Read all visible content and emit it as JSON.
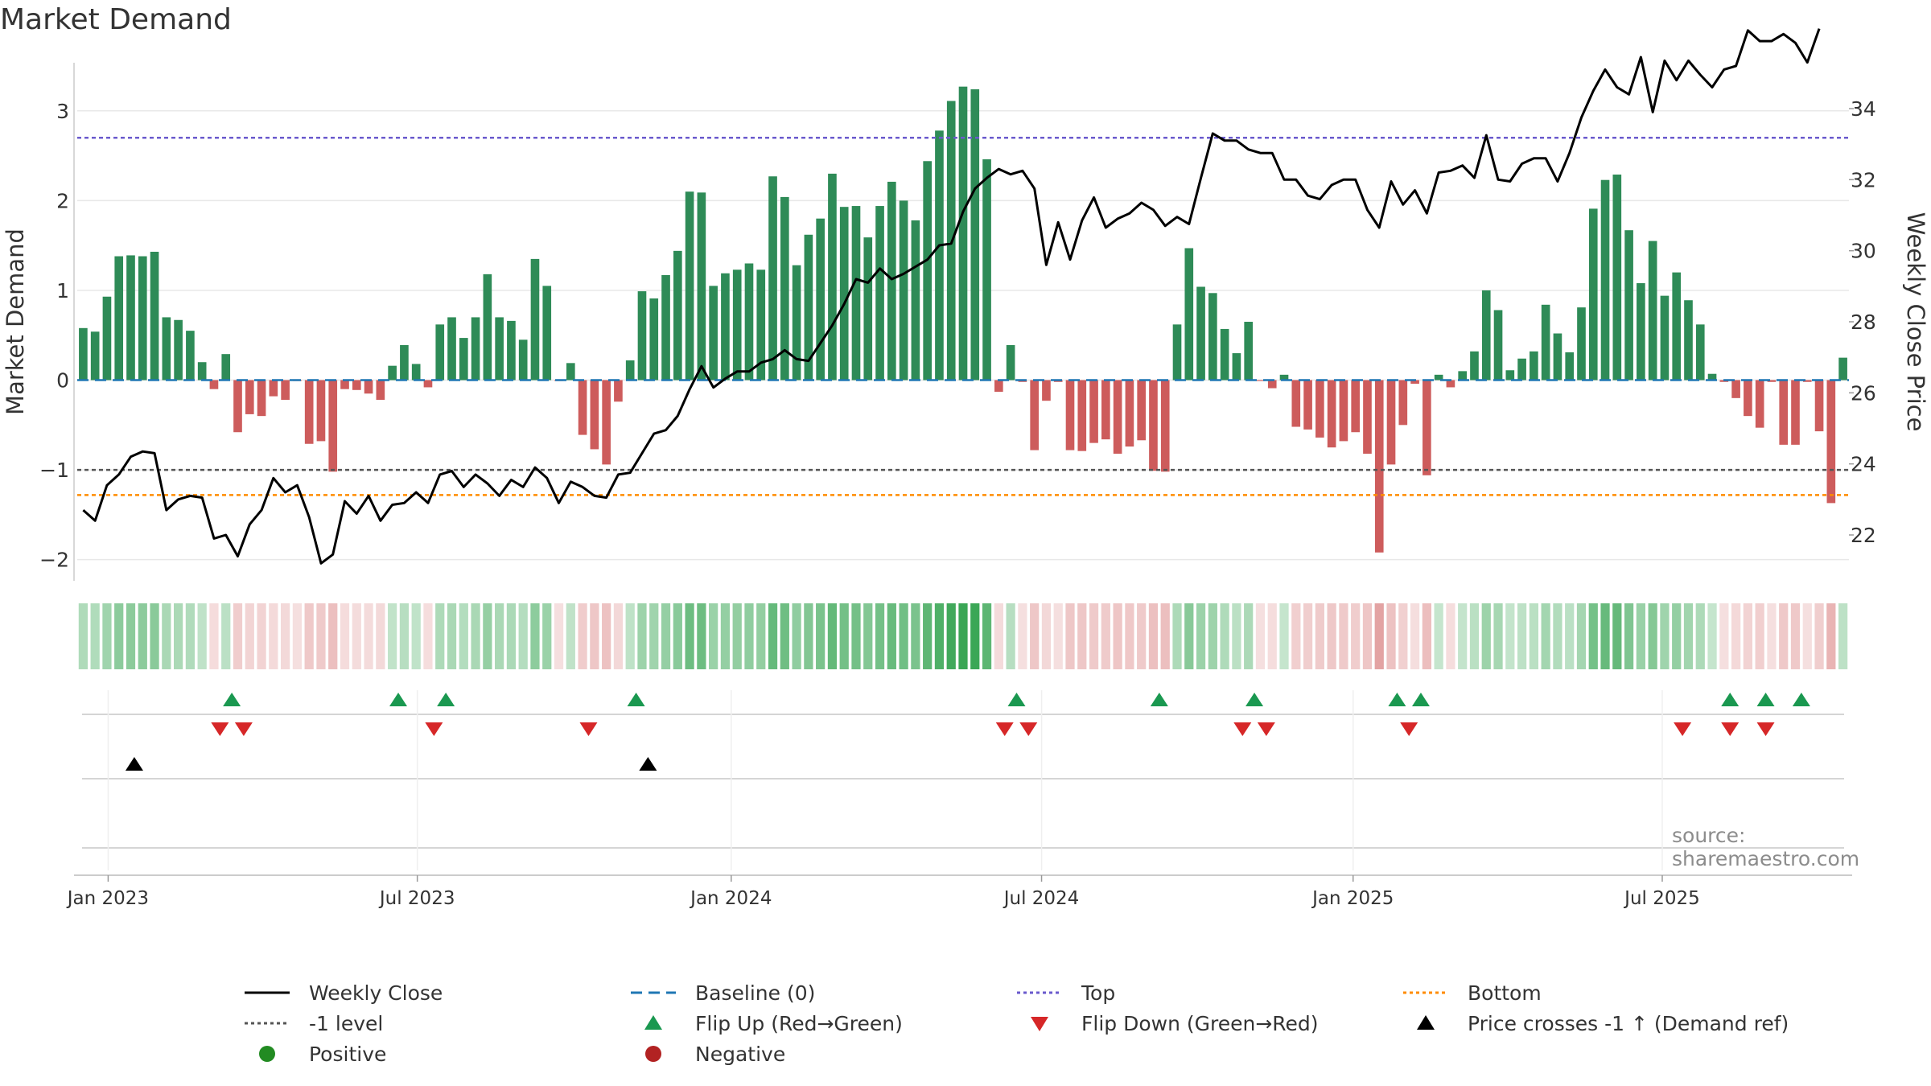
{
  "title": "Market Demand",
  "source": "source: sharemaestro.com",
  "colors": {
    "positive_bar": "#2e8b57",
    "negative_bar": "#cd5c5c",
    "close_line": "#000000",
    "baseline": "#1f77b4",
    "top": "#6a5acd",
    "bottom": "#ff8c00",
    "minus1": "#555555",
    "flip_up": "#1a9850",
    "flip_down": "#d62728",
    "cross": "#000000",
    "grid": "#e8e8e8"
  },
  "chart_data": {
    "type": "bar",
    "title": "Market Demand",
    "ylabel": "Market Demand",
    "y2label": "Weekly Close Price",
    "ylim": [
      -2.2,
      3.5
    ],
    "y2lim": [
      20.8,
      35.2
    ],
    "yticks": [
      -2,
      -1,
      0,
      1,
      2,
      3
    ],
    "y2ticks": [
      22,
      24,
      26,
      28,
      30,
      32,
      34
    ],
    "xticks": [
      {
        "label": "Jan 2023",
        "week": 2.1
      },
      {
        "label": "Jul 2023",
        "week": 28.1
      },
      {
        "label": "Jan 2024",
        "week": 54.5
      },
      {
        "label": "Jul 2024",
        "week": 80.6
      },
      {
        "label": "Jan 2025",
        "week": 106.8
      },
      {
        "label": "Jul 2025",
        "week": 132.8
      }
    ],
    "reference_lines": {
      "top": 2.7,
      "bottom": -1.28,
      "minus1": -1,
      "baseline": 0
    },
    "demand": [
      0.58,
      0.54,
      0.93,
      1.38,
      1.39,
      1.38,
      1.43,
      0.7,
      0.67,
      0.55,
      0.2,
      -0.1,
      0.29,
      -0.58,
      -0.38,
      -0.4,
      -0.18,
      -0.22,
      -0.01,
      -0.71,
      -0.68,
      -1.02,
      -0.1,
      -0.11,
      -0.15,
      -0.22,
      0.16,
      0.39,
      0.18,
      -0.08,
      0.62,
      0.7,
      0.47,
      0.7,
      1.18,
      0.7,
      0.66,
      0.45,
      1.35,
      1.05,
      -0.01,
      0.19,
      -0.61,
      -0.77,
      -0.94,
      -0.24,
      0.22,
      0.99,
      0.91,
      1.17,
      1.44,
      2.1,
      2.09,
      1.05,
      1.19,
      1.23,
      1.3,
      1.23,
      2.27,
      2.04,
      1.28,
      1.62,
      1.8,
      2.3,
      1.93,
      1.94,
      1.59,
      1.94,
      2.21,
      2.0,
      1.78,
      2.44,
      2.78,
      3.11,
      3.27,
      3.24,
      2.46,
      -0.13,
      0.39,
      -0.02,
      -0.78,
      -0.23,
      -0.02,
      -0.78,
      -0.79,
      -0.7,
      -0.66,
      -0.82,
      -0.74,
      -0.67,
      -1.01,
      -1.02,
      0.62,
      1.47,
      1.04,
      0.97,
      0.57,
      0.3,
      0.65,
      -0.01,
      -0.09,
      0.06,
      -0.52,
      -0.55,
      -0.64,
      -0.75,
      -0.68,
      -0.58,
      -0.82,
      -1.92,
      -0.94,
      -0.5,
      -0.04,
      -1.06,
      0.06,
      -0.08,
      0.1,
      0.32,
      1.0,
      0.78,
      0.11,
      0.24,
      0.32,
      0.84,
      0.52,
      0.31,
      0.81,
      1.91,
      2.23,
      2.29,
      1.67,
      1.08,
      1.55,
      0.94,
      1.2,
      0.89,
      0.62,
      0.07,
      -0.02,
      -0.2,
      -0.4,
      -0.53,
      -0.02,
      -0.72,
      -0.72,
      -0.02,
      -0.57,
      -1.37,
      0.25
    ],
    "close": [
      22.7,
      22.4,
      23.4,
      23.7,
      24.2,
      24.35,
      24.3,
      22.7,
      23.0,
      23.1,
      23.05,
      21.9,
      22.0,
      21.4,
      22.3,
      22.7,
      23.6,
      23.2,
      23.4,
      22.5,
      21.2,
      21.45,
      22.95,
      22.6,
      23.1,
      22.4,
      22.85,
      22.9,
      23.2,
      22.9,
      23.7,
      23.8,
      23.35,
      23.7,
      23.45,
      23.1,
      23.55,
      23.35,
      23.9,
      23.6,
      22.9,
      23.5,
      23.35,
      23.1,
      23.05,
      23.7,
      23.75,
      24.3,
      24.85,
      24.95,
      25.35,
      26.1,
      26.75,
      26.15,
      26.4,
      26.6,
      26.6,
      26.85,
      26.95,
      27.2,
      26.95,
      26.9,
      27.4,
      27.9,
      28.5,
      29.2,
      29.1,
      29.5,
      29.2,
      29.35,
      29.55,
      29.75,
      30.15,
      30.2,
      31.1,
      31.75,
      32.05,
      32.3,
      32.15,
      32.25,
      31.75,
      29.6,
      30.8,
      29.75,
      30.85,
      31.5,
      30.65,
      30.9,
      31.05,
      31.35,
      31.15,
      30.7,
      30.95,
      30.75,
      32.05,
      33.3,
      33.1,
      33.1,
      32.85,
      32.75,
      32.75,
      32.0,
      32.0,
      31.55,
      31.45,
      31.85,
      32.0,
      32.0,
      31.15,
      30.65,
      31.95,
      31.3,
      31.7,
      31.05,
      32.2,
      32.25,
      32.4,
      32.05,
      33.25,
      32.0,
      31.95,
      32.45,
      32.6,
      32.6,
      31.95,
      32.75,
      33.75,
      34.5,
      35.1,
      34.6,
      34.4,
      35.45,
      33.9,
      35.35,
      34.8,
      35.35,
      34.95,
      34.6,
      35.1,
      35.2,
      36.2,
      35.9,
      35.9,
      36.1,
      35.85,
      35.3,
      36.25
    ],
    "signals": {
      "flip_up_weeks": [
        12.5,
        26.5,
        30.5,
        46.5,
        78.5,
        90.5,
        98.5,
        110.5,
        112.5,
        138.5,
        141.5,
        144.5
      ],
      "flip_down_weeks": [
        11.5,
        13.5,
        29.5,
        42.5,
        77.5,
        79.5,
        97.5,
        99.5,
        111.5,
        134.5,
        138.5,
        141.5
      ],
      "price_cross_weeks": [
        4.3,
        47.5
      ]
    },
    "legend": [
      "Weekly Close",
      "Baseline (0)",
      "Top",
      "Bottom",
      "-1 level",
      "Flip Up (Red→Green)",
      "Flip Down (Green→Red)",
      "Price crosses -1 ↑ (Demand ref)",
      "Positive",
      "Negative"
    ]
  }
}
